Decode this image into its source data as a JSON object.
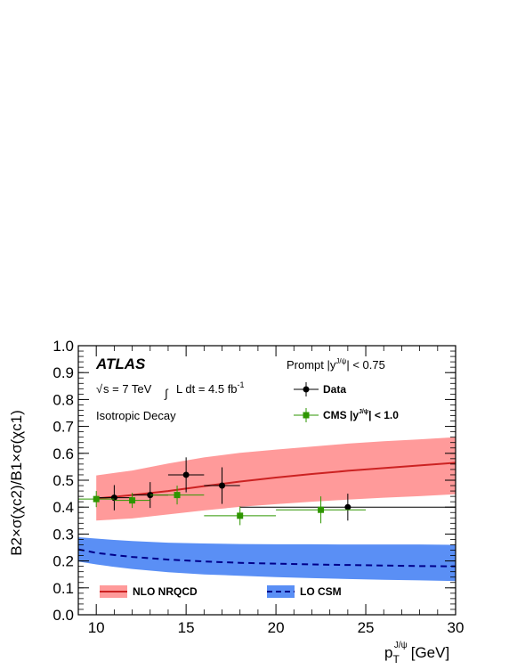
{
  "chart_data": {
    "type": "line",
    "xlabel": "p",
    "xlabel_sub": "T",
    "xlabel_sup": "J/ψ",
    "xlabel_unit": "[GeV]",
    "ylabel": "B2×σ(χc2)/B1×σ(χc1)",
    "xlim": [
      9,
      30
    ],
    "ylim": [
      0.0,
      1.0
    ],
    "xticks": [
      10,
      15,
      20,
      25,
      30
    ],
    "yticks": [
      0.0,
      0.1,
      0.2,
      0.3,
      0.4,
      0.5,
      0.6,
      0.7,
      0.8,
      0.9,
      1.0
    ],
    "grid": false,
    "legend_position": "top-right and bottom",
    "annotations": {
      "experiment": "ATLAS",
      "energy": "s = 7 TeV",
      "lumi": "L dt = 4.5 fb",
      "lumi_sup": "-1",
      "decay": "Isotropic Decay",
      "selection_pre": "Prompt  |y",
      "selection_sup": "J/ψ",
      "selection_post": "| < 0.75"
    },
    "series": [
      {
        "name": "Data",
        "kind": "errorbar",
        "color": "#000000",
        "points": [
          {
            "x": 11,
            "y": 0.435,
            "xerr": 1.0,
            "yerr": 0.047
          },
          {
            "x": 13,
            "y": 0.445,
            "xerr": 1.0,
            "yerr": 0.048
          },
          {
            "x": 15,
            "y": 0.52,
            "xerr": 1.0,
            "yerr": 0.065
          },
          {
            "x": 17,
            "y": 0.48,
            "xerr": 1.0,
            "yerr": 0.068
          },
          {
            "x": 24,
            "y": 0.4,
            "xerr": 6.0,
            "yerr": 0.05
          }
        ]
      },
      {
        "name": "CMS |y",
        "name_sup": "J/ψ",
        "name_post": "| < 1.0",
        "kind": "errorbar",
        "color": "#2e9600",
        "points": [
          {
            "x": 10.0,
            "y": 0.43,
            "xerr": 1.0,
            "yerr": 0.03
          },
          {
            "x": 12.0,
            "y": 0.425,
            "xerr": 1.0,
            "yerr": 0.028
          },
          {
            "x": 14.5,
            "y": 0.445,
            "xerr": 1.5,
            "yerr": 0.035
          },
          {
            "x": 18.0,
            "y": 0.368,
            "xerr": 2.0,
            "yerr": 0.035
          },
          {
            "x": 22.5,
            "y": 0.39,
            "xerr": 2.5,
            "yerr": 0.05
          }
        ]
      },
      {
        "name": "NLO NRQCD",
        "kind": "band",
        "color": "#cc2222",
        "fill": "#ff9a9a",
        "x": [
          10,
          12,
          14,
          16,
          18,
          20,
          22,
          24,
          26,
          28,
          30
        ],
        "central": [
          0.432,
          0.445,
          0.46,
          0.478,
          0.495,
          0.51,
          0.523,
          0.535,
          0.545,
          0.555,
          0.565
        ],
        "low": [
          0.35,
          0.358,
          0.373,
          0.388,
          0.401,
          0.411,
          0.42,
          0.428,
          0.435,
          0.441,
          0.448
        ],
        "high": [
          0.518,
          0.536,
          0.562,
          0.585,
          0.602,
          0.614,
          0.625,
          0.636,
          0.645,
          0.652,
          0.66
        ]
      },
      {
        "name": "LO CSM",
        "kind": "band",
        "color": "#00008b",
        "fill": "#5a8ff5",
        "dashed": true,
        "x": [
          9,
          10,
          11,
          12,
          14,
          16,
          18,
          20,
          22,
          24,
          26,
          28,
          30
        ],
        "central": [
          0.243,
          0.23,
          0.222,
          0.215,
          0.205,
          0.198,
          0.193,
          0.19,
          0.187,
          0.185,
          0.183,
          0.181,
          0.18
        ],
        "low": [
          0.198,
          0.187,
          0.178,
          0.17,
          0.158,
          0.15,
          0.145,
          0.14,
          0.136,
          0.133,
          0.13,
          0.128,
          0.125
        ],
        "high": [
          0.288,
          0.283,
          0.278,
          0.274,
          0.268,
          0.265,
          0.263,
          0.262,
          0.262,
          0.261,
          0.261,
          0.261,
          0.26
        ]
      }
    ]
  }
}
